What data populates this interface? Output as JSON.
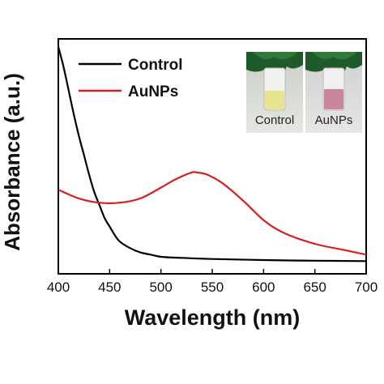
{
  "chart_data": {
    "type": "line",
    "xlabel": "Wavelength (nm)",
    "ylabel": "Absorbance (a.u.)",
    "xlim": [
      400,
      700
    ],
    "x_ticks": [
      400,
      450,
      500,
      550,
      600,
      650,
      700
    ],
    "ylim": [
      0,
      1.0
    ],
    "y_ticks_labeled": false,
    "grid": false,
    "legend_position": "top-left",
    "series": [
      {
        "name": "Control",
        "color": "#000000",
        "x": [
          400,
          405,
          410,
          415,
          420,
          425,
          430,
          435,
          440,
          445,
          450,
          455,
          460,
          470,
          480,
          490,
          500,
          520,
          550,
          600,
          650,
          700
        ],
        "y": [
          1.0,
          0.91,
          0.8,
          0.69,
          0.59,
          0.5,
          0.41,
          0.33,
          0.27,
          0.21,
          0.17,
          0.13,
          0.1,
          0.07,
          0.05,
          0.04,
          0.03,
          0.025,
          0.02,
          0.015,
          0.012,
          0.01
        ]
      },
      {
        "name": "AuNPs",
        "color": "#d42020",
        "x": [
          400,
          420,
          440,
          460,
          480,
          500,
          515,
          530,
          535,
          545,
          560,
          580,
          600,
          620,
          650,
          680,
          700
        ],
        "y": [
          0.34,
          0.3,
          0.28,
          0.28,
          0.3,
          0.35,
          0.39,
          0.42,
          0.42,
          0.41,
          0.37,
          0.29,
          0.2,
          0.14,
          0.09,
          0.06,
          0.04
        ]
      }
    ]
  },
  "photos": {
    "left_caption": "Control",
    "right_caption": "AuNPs"
  },
  "colors": {
    "axis": "#000000",
    "control": "#000000",
    "aunps": "#d42020"
  }
}
